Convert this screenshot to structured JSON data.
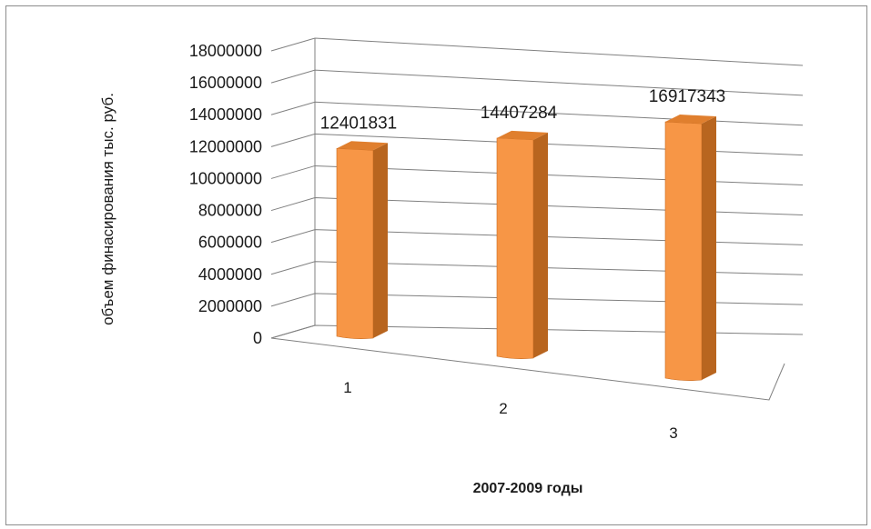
{
  "chart_data": {
    "type": "bar",
    "categories": [
      "1",
      "2",
      "3"
    ],
    "values": [
      12401831,
      14407284,
      16917343
    ],
    "data_labels": [
      "12401831",
      "14407284",
      "16917343"
    ],
    "ylabel": "объем финасирования тыс. руб.",
    "xlabel": "2007-2009 годы",
    "ylim": [
      0,
      18000000
    ],
    "yticks": [
      "0",
      "2000000",
      "4000000",
      "6000000",
      "8000000",
      "10000000",
      "12000000",
      "14000000",
      "16000000",
      "18000000"
    ],
    "grid": true,
    "three_d": true,
    "colors": {
      "bar_front": "#f79646",
      "bar_side": "#b8651f",
      "bar_top": "#e07f2e",
      "gridline": "#808080"
    }
  }
}
